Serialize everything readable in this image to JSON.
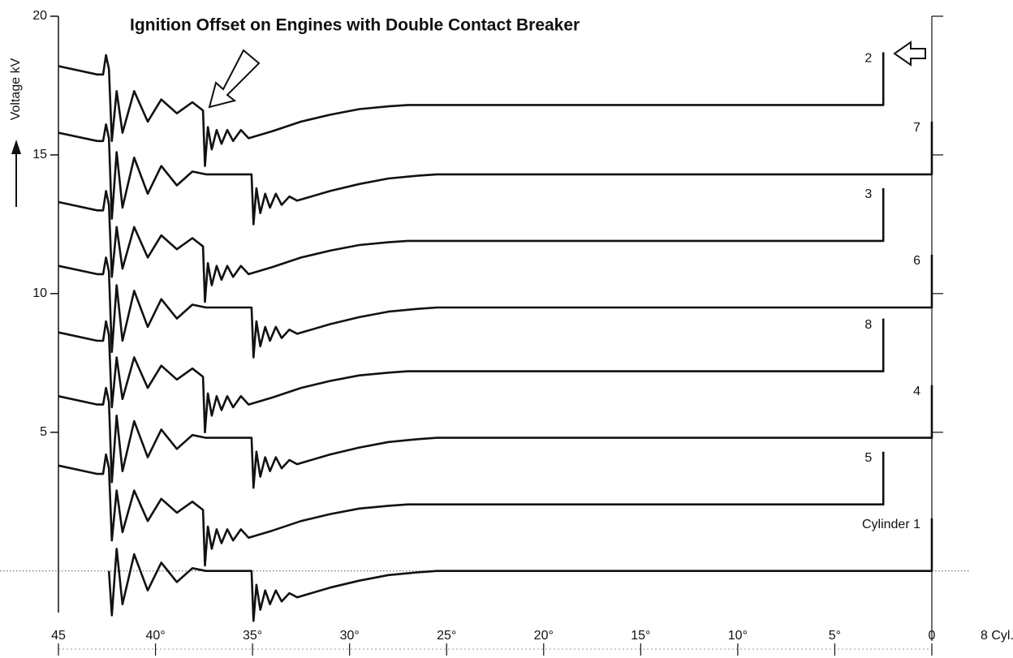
{
  "chart_data": {
    "type": "line",
    "title": "Ignition Offset on Engines with Double Contact Breaker",
    "y_label": "Voltage kV",
    "x_label": "8 Cyl.",
    "xlim": [
      45,
      0
    ],
    "ylim": [
      -1.5,
      20
    ],
    "xticks": [
      45,
      {
        "value": 40,
        "label": "40°"
      },
      {
        "value": 35,
        "label": "35°"
      },
      {
        "value": 30,
        "label": "30°"
      },
      {
        "value": 25,
        "label": "25°"
      },
      {
        "value": 20,
        "label": "20°"
      },
      {
        "value": 15,
        "label": "15°"
      },
      {
        "value": 10,
        "label": "10°"
      },
      {
        "value": 5,
        "label": "5°"
      },
      0
    ],
    "yticks": [
      5,
      10,
      15,
      20
    ],
    "series": [
      {
        "name": "2",
        "color": "#111111",
        "x": [
          45,
          43,
          42.7,
          42.55,
          42.4,
          42.25,
          42.0,
          41.7,
          41.1,
          40.4,
          39.7,
          38.9,
          38.1,
          37.55,
          37.45,
          37.3,
          37.1,
          36.85,
          36.6,
          36.3,
          36.0,
          35.6,
          35.2,
          34.0,
          32.5,
          31,
          29.5,
          28,
          27,
          2.5,
          2.5
        ],
        "values": [
          18.2,
          17.9,
          17.9,
          18.6,
          18.1,
          15.5,
          17.3,
          15.8,
          17.3,
          16.2,
          17,
          16.5,
          16.9,
          16.6,
          14.6,
          16,
          15.2,
          15.9,
          15.4,
          15.9,
          15.5,
          15.9,
          15.6,
          15.85,
          16.2,
          16.45,
          16.65,
          16.75,
          16.8,
          16.8,
          18.7
        ]
      },
      {
        "name": "7",
        "color": "#111111",
        "x": [
          45,
          43,
          42.7,
          42.55,
          42.4,
          42.25,
          42.0,
          41.7,
          41.1,
          40.4,
          39.7,
          38.9,
          38.1,
          37.4,
          35.05,
          34.95,
          34.8,
          34.6,
          34.35,
          34.1,
          33.8,
          33.5,
          33.1,
          32.7,
          31,
          29.5,
          28,
          26.5,
          25.5,
          0,
          0
        ],
        "values": [
          15.8,
          15.5,
          15.5,
          16.1,
          15.6,
          12.7,
          15.1,
          13.1,
          14.9,
          13.6,
          14.6,
          13.9,
          14.4,
          14.3,
          14.3,
          12.5,
          13.8,
          12.9,
          13.6,
          13.1,
          13.6,
          13.2,
          13.5,
          13.35,
          13.7,
          13.95,
          14.15,
          14.25,
          14.3,
          14.3,
          16.2
        ]
      },
      {
        "name": "3",
        "color": "#111111",
        "x": [
          45,
          43,
          42.7,
          42.55,
          42.4,
          42.25,
          42.0,
          41.7,
          41.1,
          40.4,
          39.7,
          38.9,
          38.1,
          37.55,
          37.45,
          37.3,
          37.1,
          36.85,
          36.6,
          36.3,
          36.0,
          35.6,
          35.2,
          34.0,
          32.5,
          31,
          29.5,
          28,
          27,
          2.5,
          2.5
        ],
        "values": [
          13.3,
          13,
          13,
          13.7,
          13.2,
          10.6,
          12.4,
          10.9,
          12.4,
          11.3,
          12.1,
          11.6,
          12,
          11.7,
          9.7,
          11.1,
          10.3,
          11,
          10.5,
          11,
          10.6,
          11,
          10.7,
          10.95,
          11.3,
          11.55,
          11.75,
          11.85,
          11.9,
          11.9,
          13.8
        ]
      },
      {
        "name": "6",
        "color": "#111111",
        "x": [
          45,
          43,
          42.7,
          42.55,
          42.4,
          42.25,
          42.0,
          41.7,
          41.1,
          40.4,
          39.7,
          38.9,
          38.1,
          37.4,
          35.05,
          34.95,
          34.8,
          34.6,
          34.35,
          34.1,
          33.8,
          33.5,
          33.1,
          32.7,
          31,
          29.5,
          28,
          26.5,
          25.5,
          0,
          0
        ],
        "values": [
          11,
          10.7,
          10.7,
          11.3,
          10.8,
          7.9,
          10.3,
          8.3,
          10.1,
          8.8,
          9.8,
          9.1,
          9.6,
          9.5,
          9.5,
          7.7,
          9,
          8.1,
          8.8,
          8.3,
          8.8,
          8.4,
          8.7,
          8.55,
          8.9,
          9.15,
          9.35,
          9.45,
          9.5,
          9.5,
          11.4
        ]
      },
      {
        "name": "8",
        "color": "#111111",
        "x": [
          45,
          43,
          42.7,
          42.55,
          42.4,
          42.25,
          42.0,
          41.7,
          41.1,
          40.4,
          39.7,
          38.9,
          38.1,
          37.55,
          37.45,
          37.3,
          37.1,
          36.85,
          36.6,
          36.3,
          36.0,
          35.6,
          35.2,
          34.0,
          32.5,
          31,
          29.5,
          28,
          27,
          2.5,
          2.5
        ],
        "values": [
          8.6,
          8.3,
          8.3,
          9,
          8.5,
          5.9,
          7.7,
          6.2,
          7.7,
          6.6,
          7.4,
          6.9,
          7.3,
          7,
          5,
          6.4,
          5.6,
          6.3,
          5.8,
          6.3,
          5.9,
          6.3,
          6,
          6.25,
          6.6,
          6.85,
          7.05,
          7.15,
          7.2,
          7.2,
          9.1
        ]
      },
      {
        "name": "4",
        "color": "#111111",
        "x": [
          45,
          43,
          42.7,
          42.55,
          42.4,
          42.25,
          42.0,
          41.7,
          41.1,
          40.4,
          39.7,
          38.9,
          38.1,
          37.4,
          35.05,
          34.95,
          34.8,
          34.6,
          34.35,
          34.1,
          33.8,
          33.5,
          33.1,
          32.7,
          31,
          29.5,
          28,
          26.5,
          25.5,
          0,
          0
        ],
        "values": [
          6.3,
          6,
          6,
          6.6,
          6.1,
          3.2,
          5.6,
          3.6,
          5.4,
          4.1,
          5.1,
          4.4,
          4.9,
          4.8,
          4.8,
          3,
          4.3,
          3.4,
          4.1,
          3.6,
          4.1,
          3.7,
          4,
          3.85,
          4.2,
          4.45,
          4.65,
          4.75,
          4.8,
          4.8,
          6.7
        ]
      },
      {
        "name": "5",
        "color": "#111111",
        "x": [
          45,
          43,
          42.7,
          42.55,
          42.4,
          42.25,
          42.0,
          41.7,
          41.1,
          40.4,
          39.7,
          38.9,
          38.1,
          37.55,
          37.45,
          37.3,
          37.1,
          36.85,
          36.6,
          36.3,
          36.0,
          35.6,
          35.2,
          34.0,
          32.5,
          31,
          29.5,
          28,
          27,
          2.5,
          2.5
        ],
        "values": [
          3.8,
          3.5,
          3.5,
          4.2,
          3.7,
          1.1,
          2.9,
          1.4,
          2.9,
          1.8,
          2.6,
          2.1,
          2.5,
          2.2,
          0.2,
          1.6,
          0.8,
          1.5,
          1,
          1.5,
          1.1,
          1.5,
          1.2,
          1.45,
          1.8,
          2.05,
          2.25,
          2.35,
          2.4,
          2.4,
          4.3
        ]
      },
      {
        "name": "Cylinder 1",
        "color": "#111111",
        "x": [
          42.4,
          42.25,
          42.0,
          41.7,
          41.1,
          40.4,
          39.7,
          38.9,
          38.1,
          37.4,
          35.05,
          34.95,
          34.8,
          34.6,
          34.35,
          34.1,
          33.8,
          33.5,
          33.1,
          32.7,
          31,
          29.5,
          28,
          26.5,
          25.5,
          0,
          0
        ],
        "values": [
          0,
          -1.6,
          0.8,
          -1.2,
          0.6,
          -0.7,
          0.3,
          -0.4,
          0.1,
          0,
          0,
          -1.8,
          -0.5,
          -1.4,
          -0.7,
          -1.2,
          -0.7,
          -1.1,
          -0.8,
          -0.95,
          -0.6,
          -0.35,
          -0.15,
          -0.05,
          0,
          0,
          1.9
        ]
      }
    ]
  }
}
